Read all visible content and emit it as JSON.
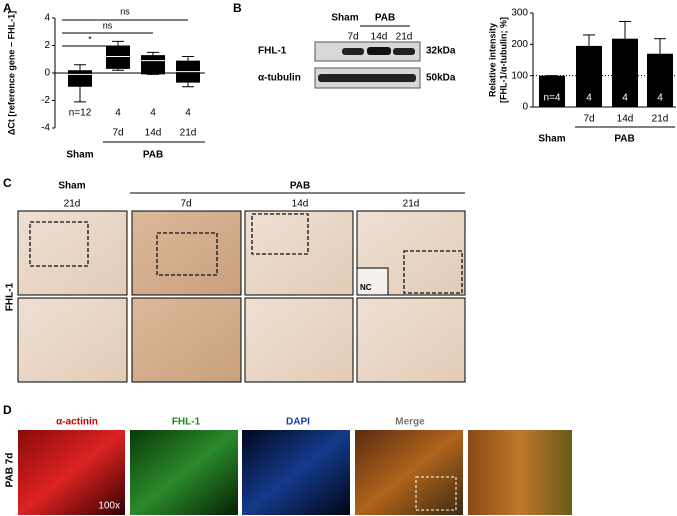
{
  "figure": {
    "panel_labels": [
      "A",
      "B",
      "C",
      "D"
    ]
  },
  "chart_data": [
    {
      "type": "box",
      "ylabel": "ΔCt [reference gene − FHL-1]",
      "categories": [
        "Sham",
        "7d",
        "14d",
        "21d"
      ],
      "group_label": "PAB",
      "boxes": [
        {
          "min": -2.1,
          "q1": -1.0,
          "median": -0.1,
          "q3": 0.2,
          "max": 0.6
        },
        {
          "min": 0.2,
          "q1": 0.3,
          "median": 1.2,
          "q3": 2.0,
          "max": 2.3
        },
        {
          "min": -0.1,
          "q1": -0.1,
          "median": 0.9,
          "q3": 1.3,
          "max": 1.5
        },
        {
          "min": -1.0,
          "q1": -0.7,
          "median": 0.1,
          "q3": 0.9,
          "max": 1.2
        }
      ],
      "n_labels": [
        "n=12",
        "4",
        "4",
        "4"
      ],
      "significance_labels": [
        "ns",
        "ns",
        "*"
      ],
      "ylim": [
        -4,
        4
      ],
      "yticks": [
        -4,
        -2,
        0,
        2,
        4
      ],
      "color": "#000000"
    },
    {
      "type": "bar",
      "ylabel": [
        "Relative intensity",
        "[FHL-1/α-tubulin; %]"
      ],
      "categories": [
        "Sham",
        "7d",
        "14d",
        "21d"
      ],
      "group_label": "PAB",
      "values": [
        100,
        195,
        218,
        170
      ],
      "errors": [
        0,
        35,
        55,
        48
      ],
      "n_labels": [
        "n=4",
        "4",
        "4",
        "4"
      ],
      "reference_line": 100,
      "ylim": [
        0,
        300
      ],
      "yticks": [
        0,
        100,
        200,
        300
      ],
      "color": "#000000"
    }
  ],
  "blot": {
    "groups": [
      "Sham",
      "PAB"
    ],
    "lanes": [
      "7d",
      "14d",
      "21d"
    ],
    "rows": [
      {
        "label": "FHL-1",
        "size": "32kDa"
      },
      {
        "label": "α-tubulin",
        "size": "50kDa"
      }
    ]
  },
  "histology": {
    "groups": [
      "Sham",
      "PAB"
    ],
    "columns": [
      "21d",
      "7d",
      "14d",
      "21d"
    ],
    "row_label": "FHL-1",
    "inset_label": "NC"
  },
  "fluorescence": {
    "columns": [
      "α-actinin",
      "FHL-1",
      "DAPI",
      "Merge"
    ],
    "row_label": "PAB 7d",
    "magnification": "100x"
  }
}
